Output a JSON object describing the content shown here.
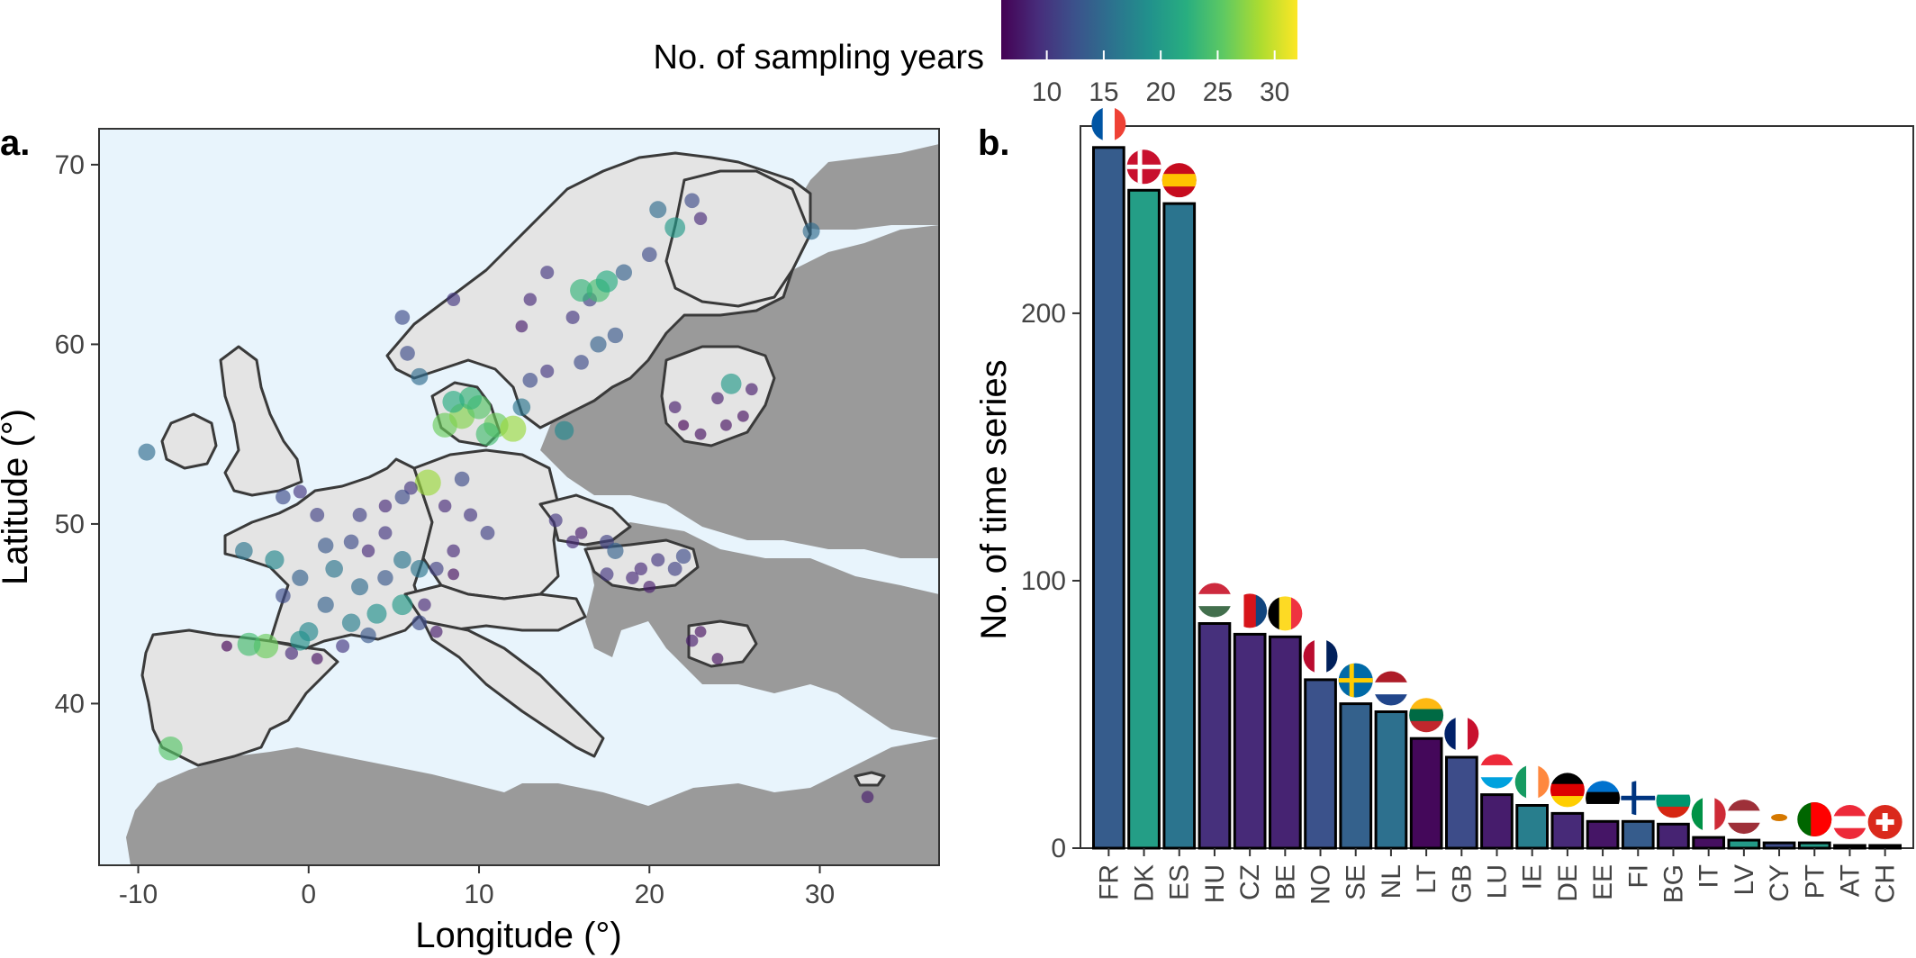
{
  "colorbar": {
    "title": "No. of sampling years",
    "min": 6,
    "max": 32,
    "ticks": [
      "10",
      "15",
      "20",
      "25",
      "30"
    ],
    "tick_values": [
      10,
      15,
      20,
      25,
      30
    ],
    "colormap": "viridis"
  },
  "panel_a": {
    "label": "a.",
    "xlabel": "Longitude (°)",
    "ylabel": "Latitude (°)",
    "xticks": [
      "-10",
      "0",
      "10",
      "20",
      "30"
    ],
    "yticks": [
      "40",
      "50",
      "60",
      "70"
    ],
    "colors": {
      "sea": "#e8f4fc",
      "study_land": "#e4e4e4",
      "other_land": "#9a9a9a",
      "border": "#3a3a3a"
    }
  },
  "panel_b": {
    "label": "b.",
    "ylabel": "No. of time series",
    "yticks": [
      "0",
      "100",
      "200"
    ]
  },
  "chart_data": [
    {
      "type": "scatter",
      "title": "",
      "xlabel": "Longitude (°)",
      "ylabel": "Latitude (°)",
      "xlim": [
        -12.3,
        37
      ],
      "ylim": [
        31,
        72
      ],
      "color_variable": "No. of sampling years",
      "points": [
        [
          -9.5,
          54.0,
          15
        ],
        [
          -8.1,
          37.5,
          25
        ],
        [
          -2.5,
          43.2,
          26
        ],
        [
          -3.5,
          43.3,
          24
        ],
        [
          -4.8,
          43.2,
          6
        ],
        [
          -1.5,
          51.5,
          12
        ],
        [
          -0.5,
          51.8,
          10
        ],
        [
          0.5,
          50.5,
          11
        ],
        [
          -3.8,
          48.5,
          16
        ],
        [
          -2.0,
          48.0,
          18
        ],
        [
          1.0,
          48.8,
          13
        ],
        [
          2.5,
          49.0,
          12
        ],
        [
          3.5,
          48.5,
          9
        ],
        [
          4.5,
          49.5,
          10
        ],
        [
          5.5,
          48.0,
          16
        ],
        [
          1.0,
          45.5,
          14
        ],
        [
          2.5,
          44.5,
          17
        ],
        [
          4.0,
          45.0,
          19
        ],
        [
          5.5,
          45.5,
          20
        ],
        [
          6.5,
          44.5,
          12
        ],
        [
          0.0,
          44.0,
          18
        ],
        [
          2.0,
          43.2,
          10
        ],
        [
          -0.5,
          43.5,
          19
        ],
        [
          4.5,
          47.0,
          13
        ],
        [
          6.5,
          47.5,
          16
        ],
        [
          7.0,
          52.3,
          28
        ],
        [
          6.0,
          52.0,
          10
        ],
        [
          4.5,
          51.0,
          9
        ],
        [
          5.5,
          51.5,
          12
        ],
        [
          3.0,
          50.5,
          11
        ],
        [
          8.0,
          51.0,
          9
        ],
        [
          9.5,
          50.5,
          10
        ],
        [
          10.5,
          49.5,
          11
        ],
        [
          8.5,
          48.5,
          9
        ],
        [
          9.0,
          52.5,
          12
        ],
        [
          7.5,
          44.0,
          8
        ],
        [
          6.8,
          45.5,
          9
        ],
        [
          8.0,
          55.5,
          26
        ],
        [
          9.0,
          56.0,
          27
        ],
        [
          10.0,
          56.5,
          25
        ],
        [
          11.0,
          55.5,
          26
        ],
        [
          12.0,
          55.3,
          28
        ],
        [
          10.5,
          55.0,
          24
        ],
        [
          9.5,
          57.0,
          23
        ],
        [
          8.5,
          56.8,
          22
        ],
        [
          15.0,
          55.2,
          18
        ],
        [
          12.5,
          56.5,
          16
        ],
        [
          13.0,
          58.0,
          12
        ],
        [
          14.0,
          58.5,
          10
        ],
        [
          16.0,
          59.0,
          12
        ],
        [
          17.0,
          60.0,
          14
        ],
        [
          18.0,
          60.5,
          13
        ],
        [
          15.5,
          61.5,
          10
        ],
        [
          16.5,
          62.5,
          11
        ],
        [
          17.0,
          63.0,
          24
        ],
        [
          17.5,
          63.5,
          22
        ],
        [
          16.0,
          63.0,
          23
        ],
        [
          18.5,
          64.0,
          14
        ],
        [
          20.0,
          65.0,
          12
        ],
        [
          21.5,
          66.5,
          20
        ],
        [
          20.5,
          67.5,
          15
        ],
        [
          22.5,
          68.0,
          12
        ],
        [
          23.0,
          67.0,
          9
        ],
        [
          14.0,
          64.0,
          10
        ],
        [
          13.0,
          62.5,
          9
        ],
        [
          12.5,
          61.0,
          8
        ],
        [
          5.5,
          61.5,
          12
        ],
        [
          5.8,
          59.5,
          12
        ],
        [
          6.5,
          58.2,
          15
        ],
        [
          8.5,
          62.5,
          10
        ],
        [
          29.5,
          66.3,
          15
        ],
        [
          24.8,
          57.8,
          20
        ],
        [
          24.0,
          57.0,
          8
        ],
        [
          25.5,
          56.0,
          7
        ],
        [
          23.0,
          55.0,
          7
        ],
        [
          21.5,
          56.5,
          8
        ],
        [
          26.0,
          57.5,
          8
        ],
        [
          22.0,
          55.5,
          6
        ],
        [
          24.5,
          55.5,
          7
        ],
        [
          14.5,
          50.2,
          10
        ],
        [
          16.0,
          49.5,
          8
        ],
        [
          17.5,
          49.0,
          11
        ],
        [
          15.5,
          49.0,
          9
        ],
        [
          18.0,
          48.5,
          14
        ],
        [
          19.5,
          47.5,
          9
        ],
        [
          20.5,
          48.0,
          10
        ],
        [
          21.5,
          47.5,
          11
        ],
        [
          19.0,
          47.0,
          9
        ],
        [
          22.0,
          48.2,
          12
        ],
        [
          20.0,
          46.5,
          8
        ],
        [
          17.5,
          47.2,
          10
        ],
        [
          23.0,
          44.0,
          7
        ],
        [
          22.5,
          43.5,
          8
        ],
        [
          24.0,
          42.5,
          7
        ],
        [
          32.8,
          34.8,
          8
        ],
        [
          0.5,
          42.5,
          7
        ],
        [
          -1.0,
          42.8,
          9
        ],
        [
          7.5,
          47.5,
          11
        ],
        [
          8.5,
          47.2,
          7
        ],
        [
          -0.5,
          47.0,
          14
        ],
        [
          -1.5,
          46.0,
          12
        ],
        [
          3.0,
          46.5,
          15
        ],
        [
          1.5,
          47.5,
          16
        ],
        [
          3.5,
          43.8,
          13
        ]
      ]
    },
    {
      "type": "bar",
      "title": "",
      "xlabel": "",
      "ylabel": "No. of time series",
      "ylim": [
        0,
        270
      ],
      "categories": [
        "FR",
        "DK",
        "ES",
        "HU",
        "CZ",
        "BE",
        "NO",
        "SE",
        "NL",
        "LT",
        "GB",
        "LU",
        "IE",
        "DE",
        "EE",
        "FI",
        "BG",
        "IT",
        "LV",
        "CY",
        "PT",
        "AT",
        "CH"
      ],
      "values": [
        262,
        246,
        241,
        84,
        80,
        79,
        63,
        54,
        51,
        41,
        34,
        20,
        16,
        13,
        10,
        10,
        9,
        4,
        3,
        2,
        2,
        1,
        1
      ],
      "mean_sampling_years": [
        13.5,
        20.5,
        16,
        9.5,
        9,
        8.5,
        12.5,
        14,
        15.5,
        6.5,
        12,
        8,
        17,
        9,
        7.5,
        13.5,
        8.5,
        7,
        20,
        12,
        20,
        11,
        12
      ],
      "flags": {
        "FR": [
          "#0055a4",
          "#ffffff",
          "#ef4135"
        ],
        "DK": [
          "#c8102e",
          "#ffffff"
        ],
        "ES": [
          "#c60b1e",
          "#ffc400"
        ],
        "HU": [
          "#cd2a3e",
          "#ffffff",
          "#436f4d"
        ],
        "CZ": [
          "#ffffff",
          "#d7141a",
          "#11457e"
        ],
        "BE": [
          "#000000",
          "#fdda24",
          "#ef3340"
        ],
        "NO": [
          "#ba0c2f",
          "#ffffff",
          "#00205b"
        ],
        "SE": [
          "#006aa7",
          "#fecc00"
        ],
        "NL": [
          "#ae1c28",
          "#ffffff",
          "#21468b"
        ],
        "LT": [
          "#fdb913",
          "#006a44",
          "#c1272d"
        ],
        "GB": [
          "#012169",
          "#ffffff",
          "#c8102e"
        ],
        "LU": [
          "#ed2939",
          "#ffffff",
          "#00a1de"
        ],
        "IE": [
          "#169b62",
          "#ffffff",
          "#ff883e"
        ],
        "DE": [
          "#000000",
          "#dd0000",
          "#ffce00"
        ],
        "EE": [
          "#0072ce",
          "#000000",
          "#ffffff"
        ],
        "FI": [
          "#ffffff",
          "#003580"
        ],
        "BG": [
          "#ffffff",
          "#00966e",
          "#d62612"
        ],
        "IT": [
          "#009246",
          "#ffffff",
          "#ce2b37"
        ],
        "LV": [
          "#9e3039",
          "#ffffff",
          "#9e3039"
        ],
        "CY": [
          "#ffffff",
          "#d57800"
        ],
        "PT": [
          "#006600",
          "#ff0000"
        ],
        "AT": [
          "#ed2939",
          "#ffffff",
          "#ed2939"
        ],
        "CH": [
          "#da291c",
          "#ffffff"
        ]
      }
    }
  ]
}
